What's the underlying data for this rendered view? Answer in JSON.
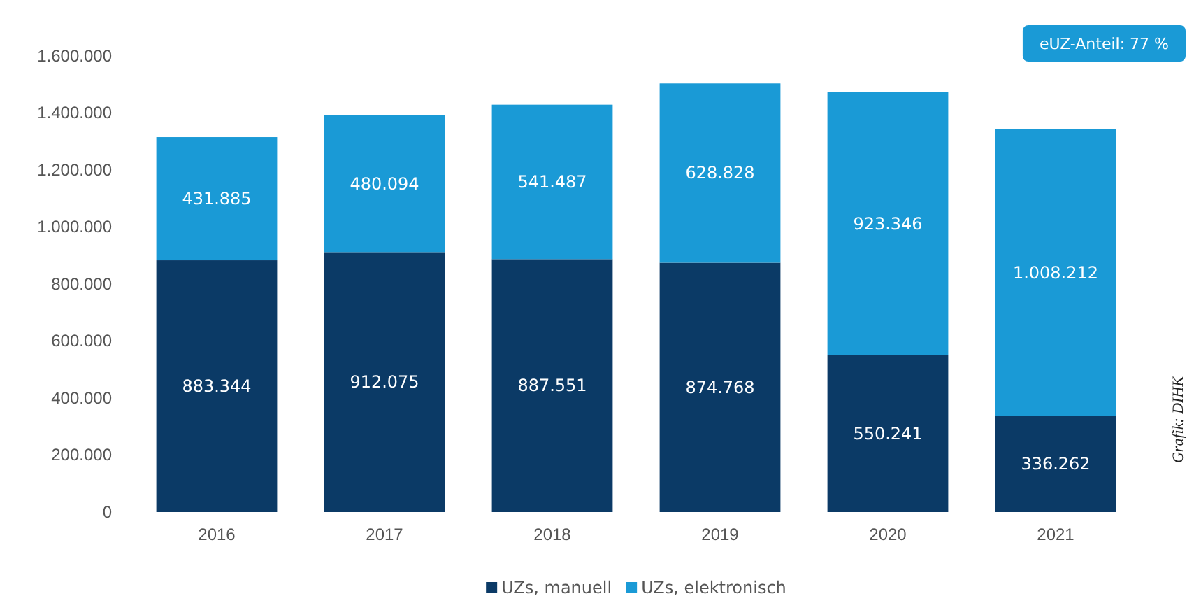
{
  "chart_data": {
    "type": "bar",
    "stacked": true,
    "categories": [
      "2016",
      "2017",
      "2018",
      "2019",
      "2020",
      "2021"
    ],
    "series": [
      {
        "name": "UZs, manuell",
        "color": "#0b3a66",
        "values": [
          883344,
          912075,
          887551,
          874768,
          550241,
          336262
        ],
        "value_labels": [
          "883.344",
          "912.075",
          "887.551",
          "874.768",
          "550.241",
          "336.262"
        ]
      },
      {
        "name": "UZs, elektronisch",
        "color": "#1a9ad6",
        "values": [
          431885,
          480094,
          541487,
          628828,
          923346,
          1008212
        ],
        "value_labels": [
          "431.885",
          "480.094",
          "541.487",
          "628.828",
          "923.346",
          "1.008.212"
        ]
      }
    ],
    "ylim": [
      0,
      1600000
    ],
    "yticks": [
      {
        "value": 0,
        "label": "0"
      },
      {
        "value": 200000,
        "label": "200.000"
      },
      {
        "value": 400000,
        "label": "400.000"
      },
      {
        "value": 600000,
        "label": "600.000"
      },
      {
        "value": 800000,
        "label": "800.000"
      },
      {
        "value": 1000000,
        "label": "1.000.000"
      },
      {
        "value": 1200000,
        "label": "1.200.000"
      },
      {
        "value": 1400000,
        "label": "1.400.000"
      },
      {
        "value": 1600000,
        "label": "1.600.000"
      }
    ],
    "legend": "bottom",
    "annotations": [
      "eUZ-Anteil: 77 %",
      "Grafik: DIHK"
    ]
  }
}
